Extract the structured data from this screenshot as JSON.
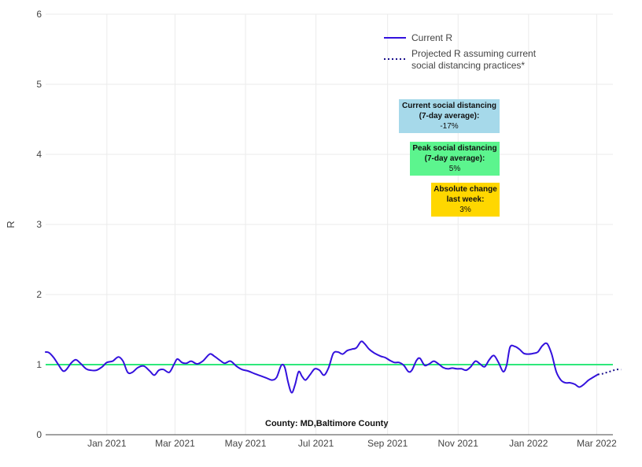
{
  "chart_data": {
    "type": "line",
    "ylabel": "R",
    "ylim": [
      0,
      6
    ],
    "yticks": [
      "0",
      "1",
      "2",
      "3",
      "4",
      "5",
      "6"
    ],
    "xlim": [
      "2020-11-09",
      "2022-03-15"
    ],
    "xticks": [
      {
        "date": "2021-01-01",
        "label": "Jan 2021"
      },
      {
        "date": "2021-03-01",
        "label": "Mar 2021"
      },
      {
        "date": "2021-05-01",
        "label": "May 2021"
      },
      {
        "date": "2021-07-01",
        "label": "Jul 2021"
      },
      {
        "date": "2021-09-01",
        "label": "Sep 2021"
      },
      {
        "date": "2021-11-01",
        "label": "Nov 2021"
      },
      {
        "date": "2022-01-01",
        "label": "Jan 2022"
      },
      {
        "date": "2022-03-01",
        "label": "Mar 2022"
      }
    ],
    "grid": true,
    "legend_position": "top-right",
    "reference_line": {
      "y": 1,
      "color": "#2ee87a"
    },
    "series": [
      {
        "name": "Current R",
        "style": "solid",
        "color": "#3311dd",
        "points": [
          [
            "2020-11-09",
            1.18
          ],
          [
            "2020-11-12",
            1.17
          ],
          [
            "2020-11-16",
            1.1
          ],
          [
            "2020-11-20",
            1.0
          ],
          [
            "2020-11-24",
            0.91
          ],
          [
            "2020-11-27",
            0.93
          ],
          [
            "2020-12-01",
            1.02
          ],
          [
            "2020-12-05",
            1.07
          ],
          [
            "2020-12-09",
            1.02
          ],
          [
            "2020-12-14",
            0.94
          ],
          [
            "2020-12-18",
            0.92
          ],
          [
            "2020-12-23",
            0.92
          ],
          [
            "2020-12-28",
            0.97
          ],
          [
            "2021-01-01",
            1.03
          ],
          [
            "2021-01-06",
            1.05
          ],
          [
            "2021-01-11",
            1.11
          ],
          [
            "2021-01-15",
            1.05
          ],
          [
            "2021-01-19",
            0.89
          ],
          [
            "2021-01-23",
            0.89
          ],
          [
            "2021-01-28",
            0.96
          ],
          [
            "2021-02-02",
            0.98
          ],
          [
            "2021-02-07",
            0.91
          ],
          [
            "2021-02-11",
            0.85
          ],
          [
            "2021-02-15",
            0.92
          ],
          [
            "2021-02-19",
            0.93
          ],
          [
            "2021-02-24",
            0.89
          ],
          [
            "2021-02-28",
            1.0
          ],
          [
            "2021-03-03",
            1.08
          ],
          [
            "2021-03-07",
            1.03
          ],
          [
            "2021-03-11",
            1.02
          ],
          [
            "2021-03-15",
            1.05
          ],
          [
            "2021-03-20",
            1.01
          ],
          [
            "2021-03-25",
            1.05
          ],
          [
            "2021-03-31",
            1.15
          ],
          [
            "2021-04-04",
            1.12
          ],
          [
            "2021-04-09",
            1.06
          ],
          [
            "2021-04-13",
            1.02
          ],
          [
            "2021-04-18",
            1.05
          ],
          [
            "2021-04-23",
            0.98
          ],
          [
            "2021-04-28",
            0.93
          ],
          [
            "2021-05-03",
            0.91
          ],
          [
            "2021-05-09",
            0.87
          ],
          [
            "2021-05-14",
            0.84
          ],
          [
            "2021-05-19",
            0.81
          ],
          [
            "2021-05-24",
            0.78
          ],
          [
            "2021-05-28",
            0.82
          ],
          [
            "2021-06-01",
            0.99
          ],
          [
            "2021-06-04",
            0.96
          ],
          [
            "2021-06-07",
            0.74
          ],
          [
            "2021-06-10",
            0.6
          ],
          [
            "2021-06-13",
            0.72
          ],
          [
            "2021-06-16",
            0.9
          ],
          [
            "2021-06-19",
            0.83
          ],
          [
            "2021-06-22",
            0.78
          ],
          [
            "2021-06-26",
            0.86
          ],
          [
            "2021-06-30",
            0.94
          ],
          [
            "2021-07-04",
            0.92
          ],
          [
            "2021-07-08",
            0.85
          ],
          [
            "2021-07-12",
            0.96
          ],
          [
            "2021-07-16",
            1.16
          ],
          [
            "2021-07-20",
            1.18
          ],
          [
            "2021-07-24",
            1.15
          ],
          [
            "2021-07-28",
            1.2
          ],
          [
            "2021-08-01",
            1.22
          ],
          [
            "2021-08-05",
            1.24
          ],
          [
            "2021-08-09",
            1.33
          ],
          [
            "2021-08-12",
            1.3
          ],
          [
            "2021-08-16",
            1.22
          ],
          [
            "2021-08-21",
            1.16
          ],
          [
            "2021-08-26",
            1.12
          ],
          [
            "2021-08-30",
            1.1
          ],
          [
            "2021-09-03",
            1.06
          ],
          [
            "2021-09-07",
            1.03
          ],
          [
            "2021-09-11",
            1.03
          ],
          [
            "2021-09-15",
            0.99
          ],
          [
            "2021-09-19",
            0.9
          ],
          [
            "2021-09-22",
            0.92
          ],
          [
            "2021-09-26",
            1.06
          ],
          [
            "2021-09-29",
            1.09
          ],
          [
            "2021-10-03",
            0.99
          ],
          [
            "2021-10-07",
            1.01
          ],
          [
            "2021-10-11",
            1.05
          ],
          [
            "2021-10-15",
            1.01
          ],
          [
            "2021-10-19",
            0.96
          ],
          [
            "2021-10-23",
            0.94
          ],
          [
            "2021-10-27",
            0.95
          ],
          [
            "2021-10-31",
            0.94
          ],
          [
            "2021-11-04",
            0.94
          ],
          [
            "2021-11-08",
            0.92
          ],
          [
            "2021-11-12",
            0.97
          ],
          [
            "2021-11-16",
            1.05
          ],
          [
            "2021-11-20",
            1.01
          ],
          [
            "2021-11-24",
            0.97
          ],
          [
            "2021-11-28",
            1.07
          ],
          [
            "2021-12-02",
            1.13
          ],
          [
            "2021-12-06",
            1.03
          ],
          [
            "2021-12-10",
            0.9
          ],
          [
            "2021-12-13",
            0.99
          ],
          [
            "2021-12-16",
            1.25
          ],
          [
            "2021-12-20",
            1.26
          ],
          [
            "2021-12-24",
            1.22
          ],
          [
            "2021-12-28",
            1.16
          ],
          [
            "2022-01-01",
            1.15
          ],
          [
            "2022-01-05",
            1.16
          ],
          [
            "2022-01-09",
            1.18
          ],
          [
            "2022-01-13",
            1.27
          ],
          [
            "2022-01-17",
            1.3
          ],
          [
            "2022-01-21",
            1.15
          ],
          [
            "2022-01-25",
            0.9
          ],
          [
            "2022-01-29",
            0.78
          ],
          [
            "2022-02-02",
            0.74
          ],
          [
            "2022-02-06",
            0.74
          ],
          [
            "2022-02-10",
            0.72
          ],
          [
            "2022-02-14",
            0.68
          ],
          [
            "2022-02-18",
            0.72
          ],
          [
            "2022-02-22",
            0.78
          ],
          [
            "2022-02-26",
            0.82
          ],
          [
            "2022-03-02",
            0.86
          ]
        ]
      },
      {
        "name": "Projected R assuming current social distancing practices*",
        "style": "dotted",
        "color": "#1a0f8c",
        "points": [
          [
            "2022-03-02",
            0.86
          ],
          [
            "2022-03-06",
            0.87
          ],
          [
            "2022-03-10",
            0.89
          ],
          [
            "2022-03-14",
            0.91
          ],
          [
            "2022-03-18",
            0.93
          ],
          [
            "2022-03-22",
            0.93
          ]
        ]
      }
    ],
    "annotations": [
      {
        "title": "Current social distancing (7-day average):",
        "value": "-17%",
        "color": "#a6d9ea"
      },
      {
        "title": "Peak social distancing (7-day average):",
        "value": "5%",
        "color": "#5cf58e"
      },
      {
        "title": "Absolute change last week:",
        "value": "3%",
        "color": "#ffd700"
      }
    ]
  },
  "legend": {
    "current": "Current R",
    "projected_line1": "Projected R assuming current",
    "projected_line2": "social distancing practices*"
  },
  "annotation_text": {
    "sd_current_l1": "Current social distancing",
    "sd_current_l2": "(7-day average):",
    "sd_current_val": "-17%",
    "sd_peak_l1": "Peak social distancing",
    "sd_peak_l2": "(7-day average):",
    "sd_peak_val": "5%",
    "abs_l1": "Absolute change",
    "abs_l2": "last week:",
    "abs_val": "3%"
  },
  "footer": "County: MD,Baltimore County"
}
